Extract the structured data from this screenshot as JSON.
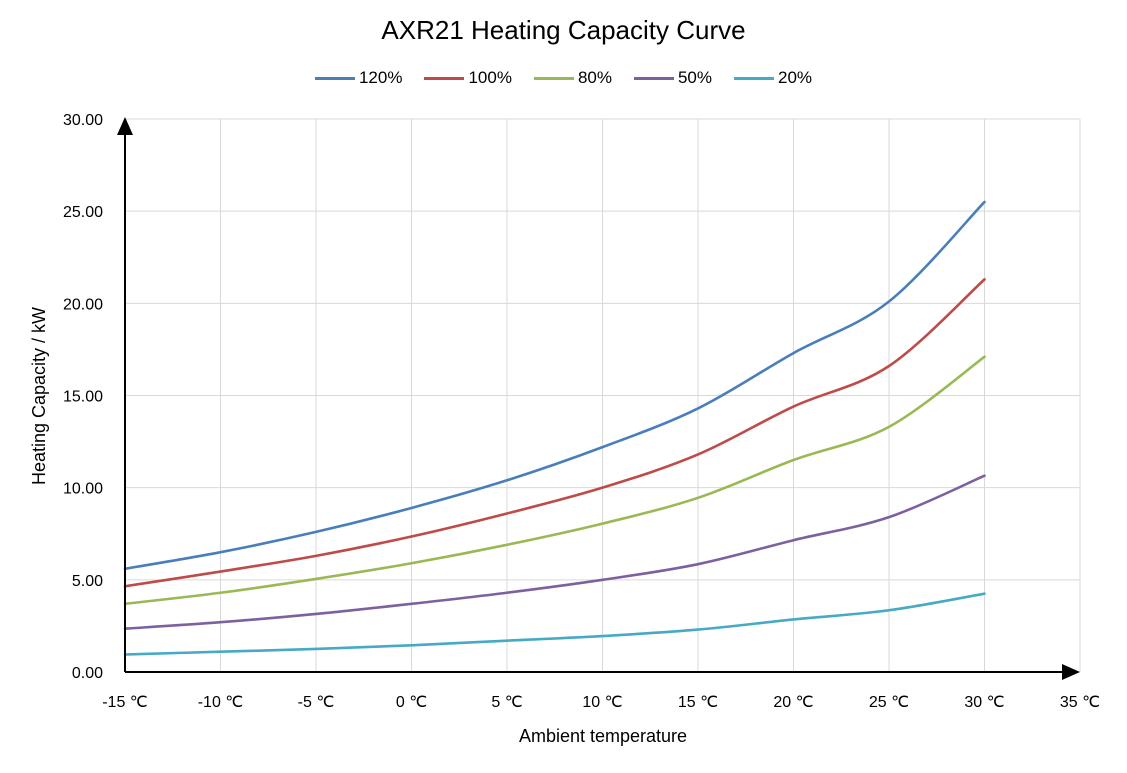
{
  "chart_data": {
    "type": "line",
    "title": "AXR21 Heating Capacity Curve",
    "xlabel": "Ambient temperature",
    "ylabel": "Heating Capacity / kW",
    "xlim": [
      -15,
      35
    ],
    "ylim": [
      0,
      30
    ],
    "x_tick_labels": [
      "-15 ℃",
      "-10 ℃",
      "-5 ℃",
      "0 ℃",
      "5 ℃",
      "10 ℃",
      "15 ℃",
      "20 ℃",
      "25 ℃",
      "30 ℃",
      "35 ℃"
    ],
    "y_tick_labels": [
      "0.00",
      "5.00",
      "10.00",
      "15.00",
      "20.00",
      "25.00",
      "30.00"
    ],
    "x": [
      -15,
      -10,
      -5,
      0,
      5,
      10,
      15,
      20,
      25,
      30
    ],
    "grid": true,
    "legend_position": "top",
    "series": [
      {
        "name": "120%",
        "color": "#4a7ebb",
        "values": [
          5.6,
          6.5,
          7.6,
          8.9,
          10.4,
          12.2,
          14.3,
          17.3,
          20.1,
          25.5
        ]
      },
      {
        "name": "100%",
        "color": "#be4b48",
        "values": [
          4.65,
          5.45,
          6.3,
          7.35,
          8.6,
          10.0,
          11.8,
          14.4,
          16.6,
          21.3
        ]
      },
      {
        "name": "80%",
        "color": "#98b954",
        "values": [
          3.7,
          4.3,
          5.05,
          5.9,
          6.9,
          8.05,
          9.45,
          11.5,
          13.3,
          17.1
        ]
      },
      {
        "name": "50%",
        "color": "#7d60a0",
        "values": [
          2.35,
          2.7,
          3.15,
          3.7,
          4.3,
          5.0,
          5.85,
          7.15,
          8.4,
          10.65
        ]
      },
      {
        "name": "20%",
        "color": "#46aac5",
        "values": [
          0.95,
          1.1,
          1.25,
          1.45,
          1.7,
          1.95,
          2.3,
          2.85,
          3.35,
          4.25
        ]
      }
    ]
  }
}
